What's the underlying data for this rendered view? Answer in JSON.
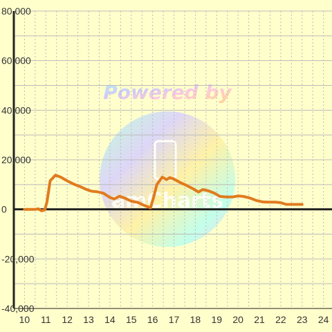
{
  "chart_data": {
    "type": "line",
    "x": [
      10.0,
      10.25,
      10.5,
      10.65,
      10.8,
      10.95,
      11.05,
      11.2,
      11.45,
      11.7,
      12.0,
      12.3,
      12.6,
      12.9,
      13.15,
      13.4,
      13.7,
      14.0,
      14.2,
      14.45,
      14.7,
      15.0,
      15.3,
      15.6,
      15.9,
      16.05,
      16.2,
      16.45,
      16.65,
      16.8,
      17.0,
      17.25,
      17.55,
      17.85,
      18.15,
      18.35,
      18.6,
      18.9,
      19.15,
      19.45,
      19.75,
      20.0,
      20.25,
      20.55,
      20.85,
      21.15,
      21.45,
      21.75,
      22.0,
      22.25,
      22.55,
      22.85,
      23.0
    ],
    "series": [
      {
        "values": [
          0,
          0,
          0,
          200,
          -600,
          -200,
          3000,
          11500,
          13800,
          13000,
          11500,
          10200,
          9200,
          8000,
          7300,
          7100,
          6500,
          4800,
          4200,
          5300,
          4500,
          3300,
          2800,
          1600,
          600,
          5000,
          10000,
          13000,
          12000,
          12800,
          12200,
          11000,
          9800,
          8500,
          7000,
          8000,
          7500,
          6500,
          5200,
          5000,
          5000,
          5400,
          5200,
          4600,
          3600,
          3000,
          2900,
          2900,
          2700,
          2000,
          2000,
          2000,
          2000
        ],
        "color": "#e07b1e"
      }
    ],
    "xlim": [
      9.5,
      24.4
    ],
    "ylim": [
      -40000,
      80000
    ],
    "x_ticks": [
      "10",
      "11",
      "12",
      "13",
      "14",
      "15",
      "16",
      "17",
      "18",
      "19",
      "20",
      "21",
      "22",
      "23",
      "24"
    ],
    "y_ticks": [
      "80,000",
      "60,000",
      "40,000",
      "20,000",
      "0",
      "-20,000",
      "-40,000"
    ],
    "y_tick_values": [
      80000,
      60000,
      40000,
      20000,
      0,
      -20000,
      -40000
    ],
    "grid": true,
    "watermark": {
      "text": "Powered by",
      "logo_text": "amCharts"
    },
    "colors": {
      "background": "#ffffcc",
      "grid": "#bbbbbb",
      "axis": "#222222",
      "line": "#e07b1e"
    }
  }
}
